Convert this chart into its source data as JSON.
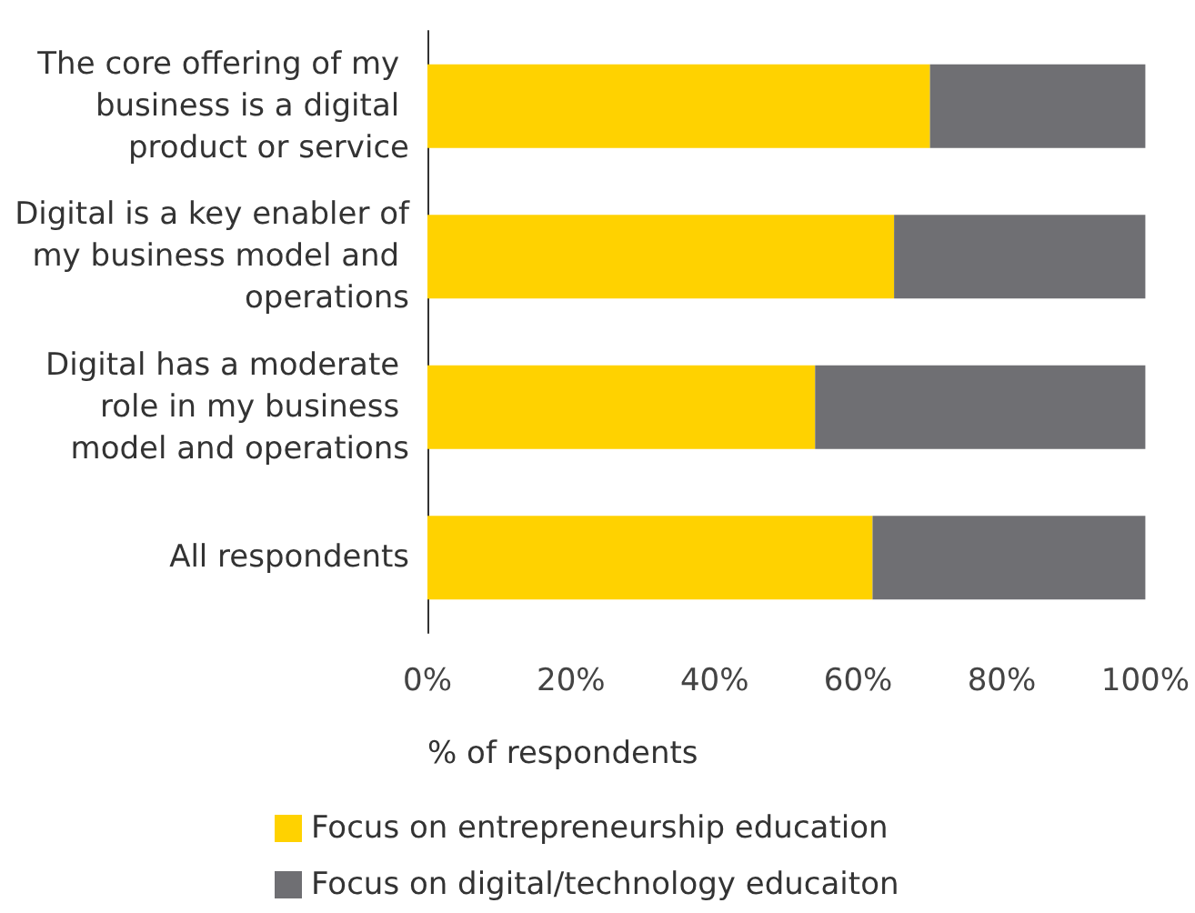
{
  "chart_data": {
    "type": "bar",
    "orientation": "horizontal",
    "stacked": true,
    "xlabel": "% of respondents",
    "categories": [
      "The core offering of my business is a digital product or service",
      "Digital is a key enabler of my business model and operations",
      "Digital has a moderate role in my business model and operations",
      "All respondents"
    ],
    "series": [
      {
        "name": "Focus on entrepreneurship education",
        "color": "#ffd200",
        "values": [
          70,
          65,
          54,
          62
        ]
      },
      {
        "name": "Focus on digital/technology educaiton",
        "color": "#6f6f73",
        "values": [
          30,
          35,
          46,
          38
        ]
      }
    ],
    "xlim": [
      0,
      100
    ],
    "xticks": [
      {
        "value": 0,
        "label": "0%"
      },
      {
        "value": 20,
        "label": "20%"
      },
      {
        "value": 40,
        "label": "40%"
      },
      {
        "value": 60,
        "label": "60%"
      },
      {
        "value": 80,
        "label": "80%"
      },
      {
        "value": 100,
        "label": "100%"
      }
    ],
    "grid": false,
    "legend": "bottom"
  }
}
